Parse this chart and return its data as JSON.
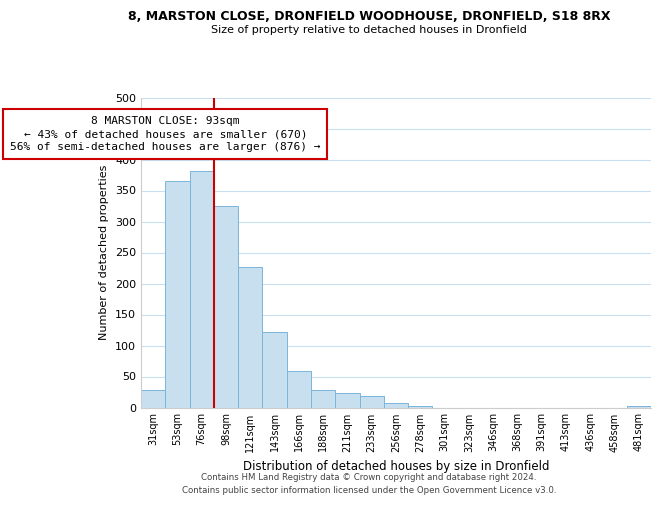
{
  "title": "8, MARSTON CLOSE, DRONFIELD WOODHOUSE, DRONFIELD, S18 8RX",
  "subtitle": "Size of property relative to detached houses in Dronfield",
  "xlabel": "Distribution of detached houses by size in Dronfield",
  "ylabel": "Number of detached properties",
  "bar_color": "#c8dff0",
  "bar_edge_color": "#7ab5d8",
  "categories": [
    "31sqm",
    "53sqm",
    "76sqm",
    "98sqm",
    "121sqm",
    "143sqm",
    "166sqm",
    "188sqm",
    "211sqm",
    "233sqm",
    "256sqm",
    "278sqm",
    "301sqm",
    "323sqm",
    "346sqm",
    "368sqm",
    "391sqm",
    "413sqm",
    "436sqm",
    "458sqm",
    "481sqm"
  ],
  "values": [
    28,
    365,
    382,
    325,
    226,
    122,
    59,
    28,
    24,
    18,
    7,
    2,
    0,
    0,
    0,
    0,
    0,
    0,
    0,
    0,
    3
  ],
  "ylim": [
    0,
    500
  ],
  "yticks": [
    0,
    50,
    100,
    150,
    200,
    250,
    300,
    350,
    400,
    450,
    500
  ],
  "vline_x_idx": 2,
  "vline_color": "#cc0000",
  "annotation_line1": "8 MARSTON CLOSE: 93sqm",
  "annotation_line2": "← 43% of detached houses are smaller (670)",
  "annotation_line3": "56% of semi-detached houses are larger (876) →",
  "annotation_box_color": "#ffffff",
  "annotation_box_edge": "#cc0000",
  "footer_line1": "Contains HM Land Registry data © Crown copyright and database right 2024.",
  "footer_line2": "Contains public sector information licensed under the Open Government Licence v3.0.",
  "background_color": "#ffffff",
  "grid_color": "#c8dff0"
}
